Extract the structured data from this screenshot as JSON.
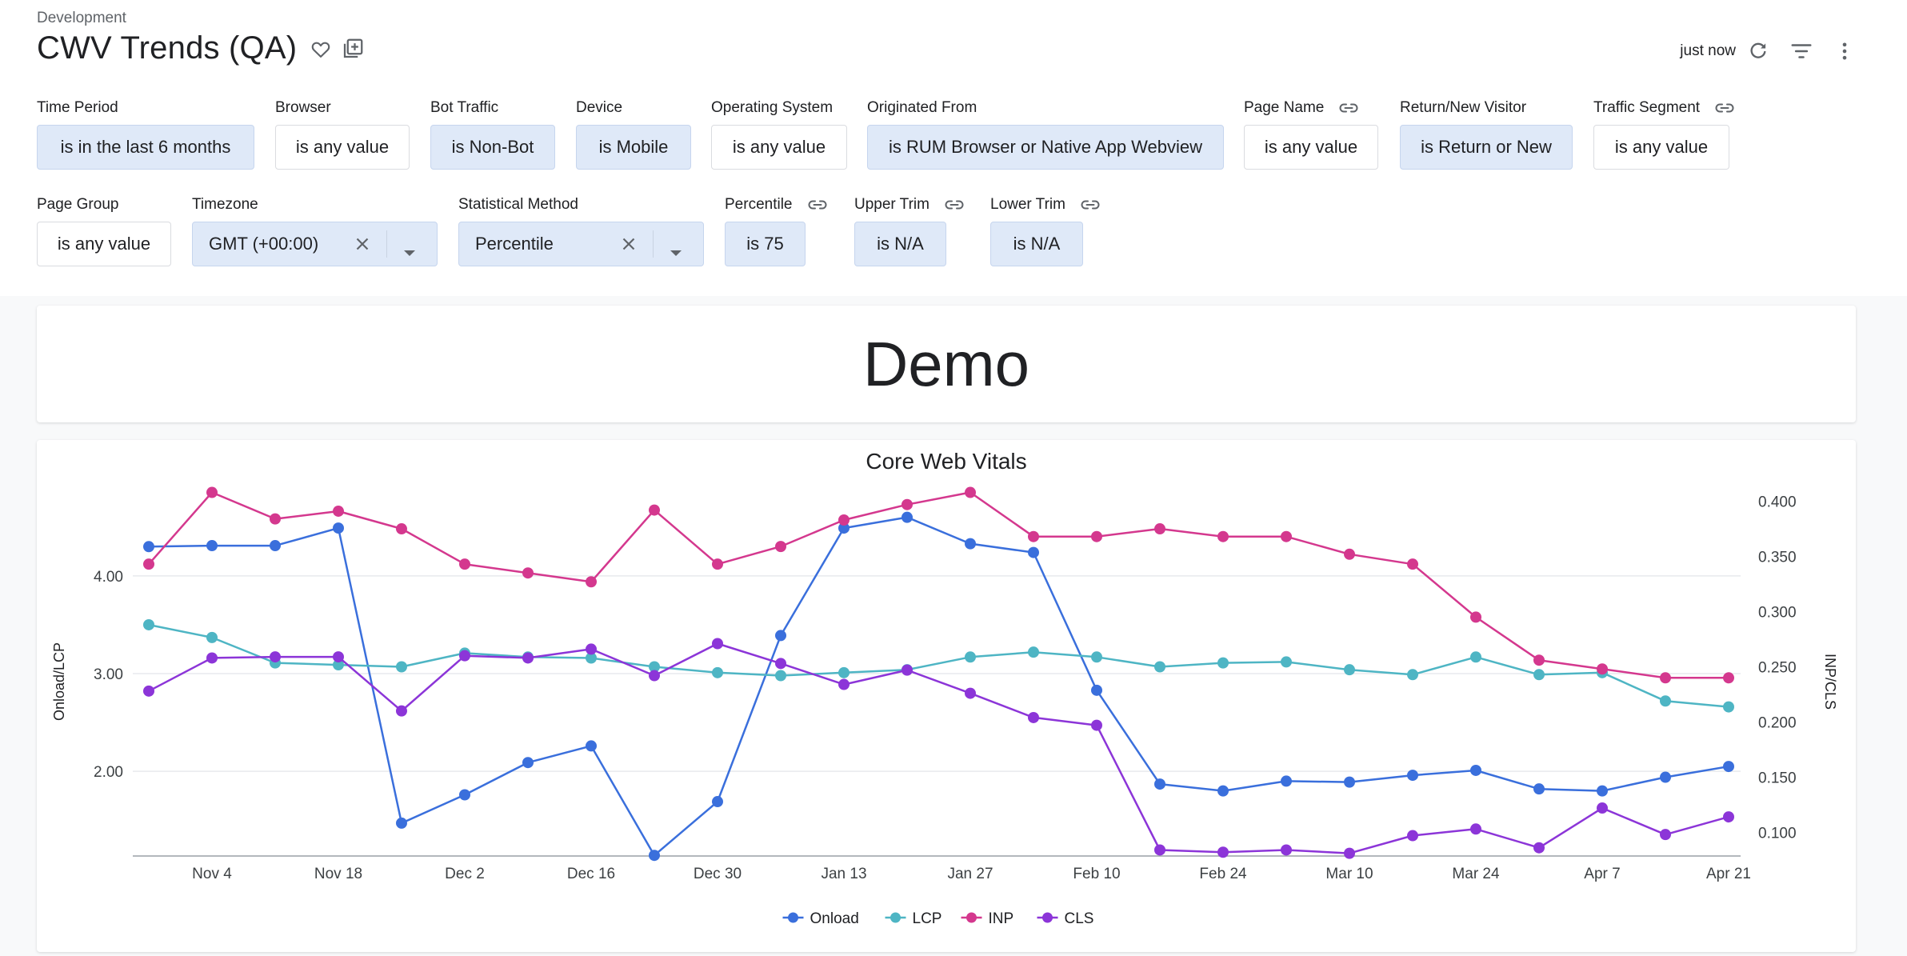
{
  "breadcrumb": "Development",
  "title": "CWV Trends (QA)",
  "refresh_status": "just now",
  "filters": [
    {
      "label": "Time Period",
      "value": "is in the last 6 months",
      "active": true
    },
    {
      "label": "Browser",
      "value": "is any value",
      "active": false
    },
    {
      "label": "Bot Traffic",
      "value": "is Non-Bot",
      "active": true
    },
    {
      "label": "Device",
      "value": "is Mobile",
      "active": true
    },
    {
      "label": "Operating System",
      "value": "is any value",
      "active": false
    },
    {
      "label": "Originated From",
      "value": "is RUM Browser or Native App Webview",
      "active": true
    },
    {
      "label": "Page Name",
      "value": "is any value",
      "active": false,
      "linked": true
    },
    {
      "label": "Return/New Visitor",
      "value": "is Return or New",
      "active": true
    },
    {
      "label": "Traffic Segment",
      "value": "is any value",
      "active": false,
      "linked": true
    },
    {
      "label": "Page Group",
      "value": "is any value",
      "active": false
    },
    {
      "label": "Timezone",
      "value": "GMT (+00:00)",
      "active": true,
      "type": "select"
    },
    {
      "label": "Statistical Method",
      "value": "Percentile",
      "active": true,
      "type": "select"
    },
    {
      "label": "Percentile",
      "value": "is 75",
      "active": true,
      "linked": true
    },
    {
      "label": "Upper Trim",
      "value": "is N/A",
      "active": true,
      "linked": true
    },
    {
      "label": "Lower Trim",
      "value": "is N/A",
      "active": true,
      "linked": true
    }
  ],
  "demo_tile": {
    "text": "Demo"
  },
  "chart_data": {
    "type": "line",
    "title": "Core Web Vitals",
    "y_left_label": "Onload/LCP",
    "y_right_label": "INP/CLS",
    "x_ticks": [
      "Nov 4",
      "Nov 18",
      "Dec 2",
      "Dec 16",
      "Dec 30",
      "Jan 13",
      "Jan 27",
      "Feb 10",
      "Feb 24",
      "Mar 10",
      "Mar 24",
      "Apr 7",
      "Apr 21"
    ],
    "x_start": "Oct 28",
    "x_step_days": 7,
    "y_left_ticks": [
      "2.00",
      "3.00",
      "4.00"
    ],
    "y_left_range": [
      1.15,
      4.9
    ],
    "y_right_ticks": [
      "0.100",
      "0.150",
      "0.200",
      "0.250",
      "0.300",
      "0.350",
      "0.400"
    ],
    "y_right_range": [
      0.08,
      0.412
    ],
    "grid": true,
    "legend_position": "bottom-center",
    "series": [
      {
        "name": "Onload",
        "axis": "left",
        "color": "#3a6fdc",
        "values": [
          4.3,
          4.31,
          4.31,
          4.49,
          1.47,
          1.76,
          2.09,
          2.26,
          1.14,
          1.69,
          3.39,
          4.49,
          4.6,
          4.33,
          4.24,
          2.83,
          1.87,
          1.8,
          1.9,
          1.89,
          1.96,
          2.01,
          1.82,
          1.8,
          1.94,
          2.05
        ]
      },
      {
        "name": "LCP",
        "axis": "left",
        "color": "#4eb5c4",
        "values": [
          3.5,
          3.37,
          3.11,
          3.09,
          3.07,
          3.21,
          3.17,
          3.16,
          3.07,
          3.01,
          2.98,
          3.01,
          3.04,
          3.17,
          3.22,
          3.17,
          3.07,
          3.11,
          3.12,
          3.04,
          2.99,
          3.17,
          2.99,
          3.01,
          2.72,
          2.66
        ]
      },
      {
        "name": "INP",
        "axis": "right",
        "color": "#d4388e",
        "values": [
          0.343,
          0.408,
          0.384,
          0.391,
          0.375,
          0.343,
          0.335,
          0.327,
          0.392,
          0.343,
          0.359,
          0.383,
          0.397,
          0.408,
          0.368,
          0.368,
          0.375,
          0.368,
          0.368,
          0.352,
          0.343,
          0.295,
          0.256,
          0.248,
          0.24,
          0.24
        ]
      },
      {
        "name": "CLS",
        "axis": "right",
        "color": "#8c35d8",
        "values": [
          0.228,
          0.258,
          0.259,
          0.259,
          0.21,
          0.26,
          0.258,
          0.266,
          0.242,
          0.271,
          0.253,
          0.234,
          0.247,
          0.226,
          0.204,
          0.197,
          0.084,
          0.082,
          0.084,
          0.081,
          0.097,
          0.103,
          0.086,
          0.122,
          0.098,
          0.114
        ]
      }
    ]
  }
}
